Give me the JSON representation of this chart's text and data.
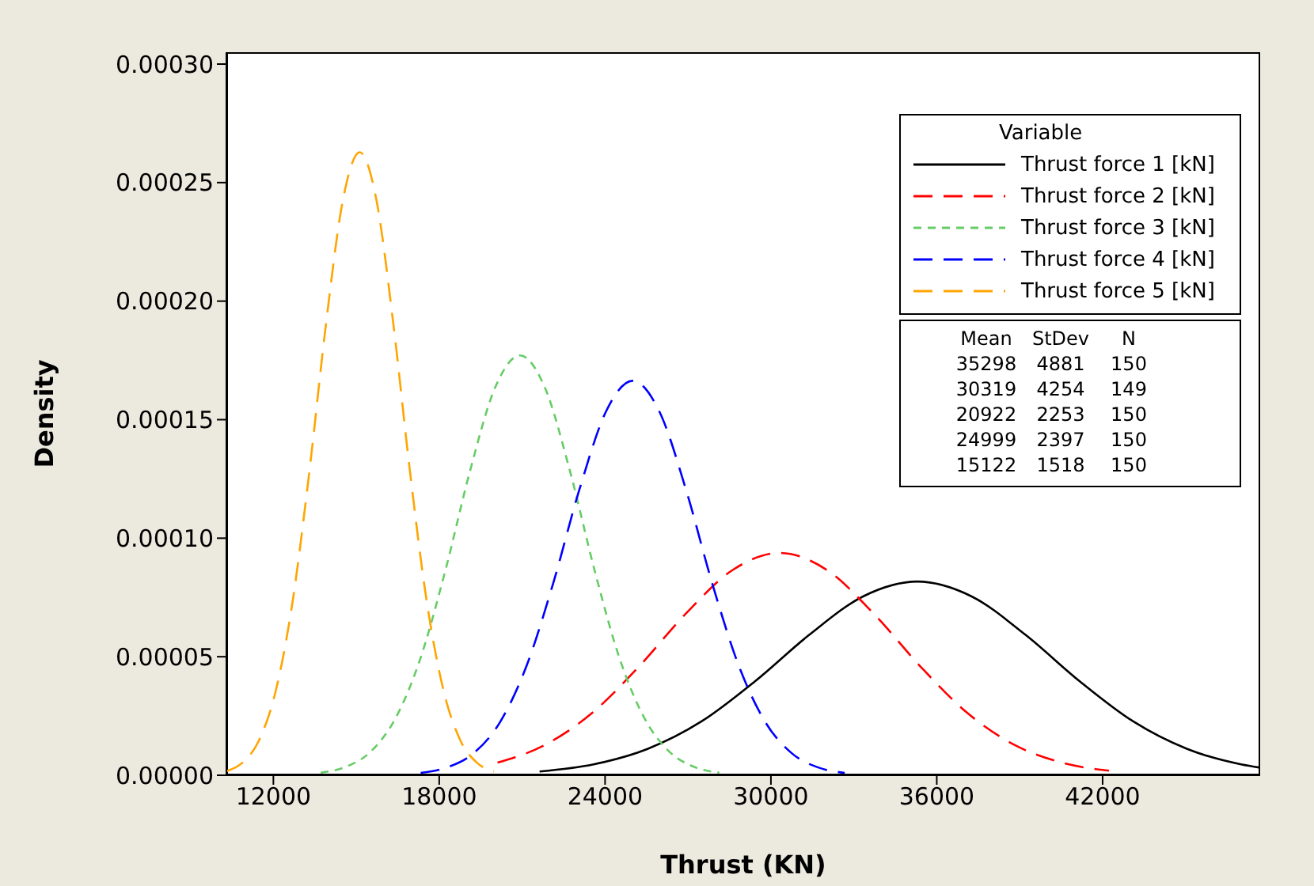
{
  "chart_data": {
    "type": "line",
    "xlabel": "Thrust (KN)",
    "ylabel": "Density",
    "legend_title": "Variable",
    "legend": "top right",
    "grid": false,
    "marker": "none",
    "xlim": [
      10300,
      47700
    ],
    "xticks": [
      12000,
      18000,
      24000,
      30000,
      36000,
      42000
    ],
    "ylim": [
      0,
      0.000305
    ],
    "yticks": [
      {
        "value": 0,
        "label": "0.00000"
      },
      {
        "value": 5e-05,
        "label": "0.00005"
      },
      {
        "value": 0.0001,
        "label": "0.00010"
      },
      {
        "value": 0.00015,
        "label": "0.00015"
      },
      {
        "value": 0.0002,
        "label": "0.00020"
      },
      {
        "value": 0.00025,
        "label": "0.00025"
      },
      {
        "value": 0.0003,
        "label": "0.00030"
      }
    ],
    "annotations": [
      "Mean",
      "StDev",
      "N",
      "35298",
      "4881",
      "150",
      "30319",
      "4254",
      "149",
      "20922",
      "2253",
      "150",
      "24999",
      "2397",
      "150",
      "15122",
      "1518",
      "150"
    ],
    "series": [
      {
        "name": "Thrust force 1 [kN]",
        "color": "#000000",
        "line_style": "solid",
        "x": [
          21631,
          23584,
          25536,
          27488,
          29441,
          31393,
          33346,
          35298,
          37250,
          39203,
          41155,
          43108,
          45060,
          47012,
          47700
        ],
        "values": [
          1.6e-06,
          4.6e-06,
          1.11e-05,
          2.27e-05,
          3.98e-05,
          5.93e-05,
          7.55e-05,
          8.17e-05,
          7.55e-05,
          5.93e-05,
          3.98e-05,
          2.27e-05,
          1.11e-05,
          4.6e-06,
          3.2e-06
        ]
      },
      {
        "name": "Thrust force 2 [kN]",
        "color": "#ff0000",
        "line_style": "dashed",
        "x": [
          20109,
          21811,
          23513,
          25214,
          26916,
          28617,
          30319,
          32021,
          33722,
          35424,
          37125,
          38827,
          40529,
          42230
        ],
        "values": [
          5.3e-06,
          1.27e-05,
          2.61e-05,
          4.57e-05,
          6.81e-05,
          8.66e-05,
          9.38e-05,
          8.66e-05,
          6.81e-05,
          4.57e-05,
          2.61e-05,
          1.27e-05,
          5.3e-06,
          1.9e-06
        ]
      },
      {
        "name": "Thrust force 3 [kN]",
        "color": "#66cc66",
        "line_style": "dotted",
        "x": [
          13712,
          14614,
          15515,
          16416,
          17317,
          18218,
          19120,
          20021,
          20922,
          21823,
          22724,
          23626,
          24527,
          25428,
          26329,
          27230,
          28132
        ],
        "values": [
          1.1e-06,
          3.5e-06,
          9.9e-06,
          2.4e-05,
          4.92e-05,
          8.62e-05,
          0.0001286,
          0.0001635,
          0.0001771,
          0.0001635,
          0.0001286,
          8.62e-05,
          4.92e-05,
          2.4e-05,
          9.9e-06,
          3.5e-06,
          1.1e-06
        ]
      },
      {
        "name": "Thrust force 4 [kN]",
        "color": "#0000ff",
        "line_style": "dashed",
        "x": [
          17329,
          18287,
          19246,
          20205,
          21164,
          22123,
          23081,
          24040,
          24999,
          25958,
          26917,
          27875,
          28834,
          29793,
          30752,
          31711,
          32670
        ],
        "values": [
          1e-06,
          3.3e-06,
          9.3e-06,
          2.25e-05,
          4.63e-05,
          8.1e-05,
          0.0001209,
          0.0001536,
          0.0001664,
          0.0001536,
          0.0001209,
          8.1e-05,
          4.63e-05,
          2.25e-05,
          9.3e-06,
          3.3e-06,
          1e-06
        ]
      },
      {
        "name": "Thrust force 5 [kN]",
        "color": "#ffa500",
        "line_style": "dashed",
        "x": [
          10300,
          10872,
          11479,
          12086,
          12693,
          13300,
          13908,
          14515,
          15122,
          15729,
          16336,
          16944,
          17551,
          18158,
          18765,
          19372,
          19980
        ],
        "values": [
          1.7e-06,
          5.2e-06,
          1.47e-05,
          3.56e-05,
          7.31e-05,
          0.0001279,
          0.0001908,
          0.0002426,
          0.0002628,
          0.0002426,
          0.0001908,
          0.0001279,
          7.31e-05,
          3.56e-05,
          1.47e-05,
          5.2e-06,
          1.6e-06
        ]
      }
    ]
  }
}
